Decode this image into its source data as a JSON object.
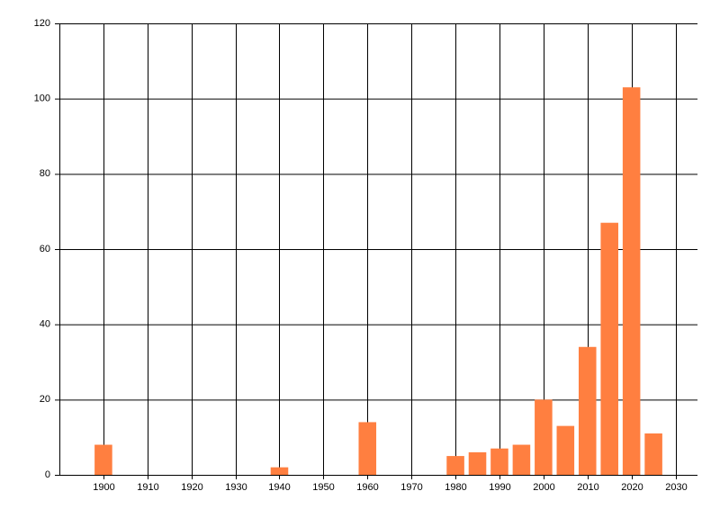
{
  "chart_data": {
    "type": "bar",
    "x": [
      1900,
      1940,
      1960,
      1980,
      1985,
      1990,
      1995,
      2000,
      2005,
      2010,
      2015,
      2020,
      2025
    ],
    "values": [
      8,
      2,
      14,
      5,
      6,
      7,
      8,
      20,
      13,
      34,
      67,
      103,
      11
    ],
    "color": "#ff7f40",
    "xlim": [
      1890,
      2035
    ],
    "xticks": [
      1900,
      1910,
      1920,
      1930,
      1940,
      1950,
      1960,
      1970,
      1980,
      1990,
      2000,
      2010,
      2020,
      2030
    ],
    "ylim": [
      0,
      120
    ],
    "yticks": [
      0,
      20,
      40,
      60,
      80,
      100,
      120
    ],
    "grid": true
  }
}
